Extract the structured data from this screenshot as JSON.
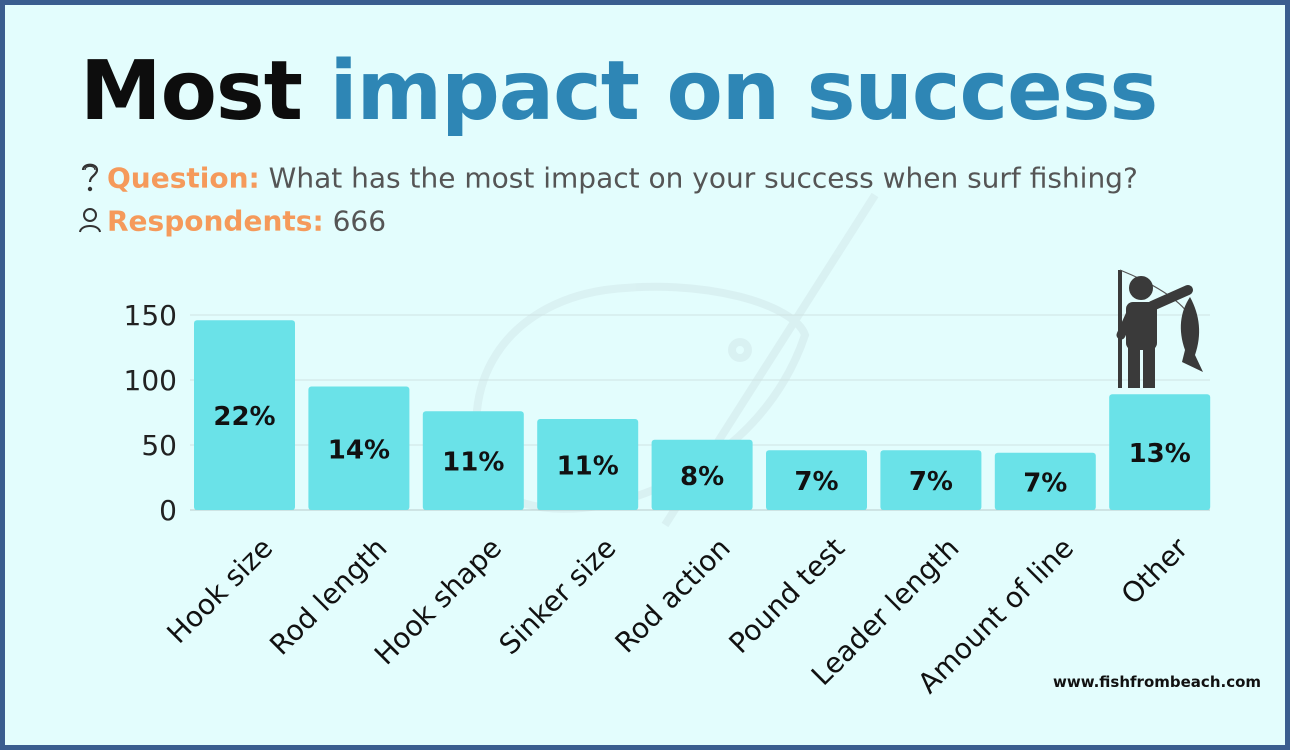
{
  "title": {
    "part1": "Most",
    "part2": "impact on success"
  },
  "question": {
    "label": "Question:",
    "text": "What has the most impact on your success when surf fishing?"
  },
  "respondents": {
    "label": "Respondents:",
    "value": "666"
  },
  "website": "www.fishfrombeach.com",
  "icons": {
    "question": "question-mark-icon",
    "person": "person-icon",
    "logo": "fisherman-holding-fish-icon"
  },
  "colors": {
    "bar": "#6ae2e8",
    "title_accent": "#2e86b5",
    "label_accent": "#f59a5b",
    "background": "#e3fdfd",
    "border": "#3a5d8f"
  },
  "chart_data": {
    "type": "bar",
    "categories": [
      "Hook size",
      "Rod length",
      "Hook shape",
      "Sinker size",
      "Rod action",
      "Pound test",
      "Leader length",
      "Amount of line",
      "Other"
    ],
    "values": [
      146,
      95,
      76,
      70,
      54,
      46,
      46,
      44,
      89
    ],
    "data_labels": [
      "22%",
      "14%",
      "11%",
      "11%",
      "8%",
      "7%",
      "7%",
      "7%",
      "13%"
    ],
    "yticks": [
      0,
      50,
      100,
      150
    ],
    "ylim": [
      0,
      150
    ],
    "grid": true,
    "title": "",
    "xlabel": "",
    "ylabel": ""
  }
}
